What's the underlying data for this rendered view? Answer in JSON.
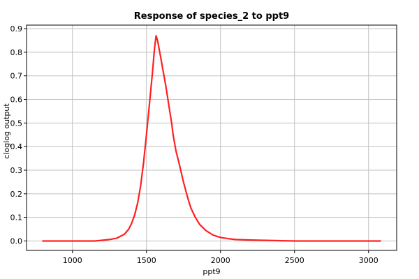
{
  "chart_data": {
    "type": "line",
    "title": "Response of species_2 to ppt9",
    "xlabel": "ppt9",
    "ylabel": "cloglog output",
    "xlim": [
      690,
      3190
    ],
    "ylim": [
      -0.04,
      0.915
    ],
    "xticks": [
      1000,
      1500,
      2000,
      2500,
      3000
    ],
    "yticks": [
      0.0,
      0.1,
      0.2,
      0.3,
      0.4,
      0.5,
      0.6,
      0.7,
      0.8,
      0.9
    ],
    "ytick_labels": [
      "0.0",
      "0.1",
      "0.2",
      "0.3",
      "0.4",
      "0.5",
      "0.6",
      "0.7",
      "0.8",
      "0.9"
    ],
    "grid": true,
    "legend": "none",
    "series": [
      {
        "color": "#ff2020",
        "x": [
          800,
          1000,
          1150,
          1200,
          1250,
          1300,
          1350,
          1380,
          1400,
          1420,
          1440,
          1460,
          1480,
          1500,
          1520,
          1540,
          1555,
          1565,
          1575,
          1590,
          1610,
          1630,
          1650,
          1670,
          1680,
          1700,
          1720,
          1750,
          1780,
          1800,
          1830,
          1860,
          1900,
          1950,
          2000,
          2050,
          2100,
          2200,
          2280,
          2500,
          2800,
          3080
        ],
        "y": [
          0.0,
          0.0,
          0.0,
          0.003,
          0.006,
          0.012,
          0.028,
          0.05,
          0.075,
          0.11,
          0.16,
          0.23,
          0.33,
          0.45,
          0.58,
          0.71,
          0.82,
          0.87,
          0.85,
          0.8,
          0.73,
          0.66,
          0.58,
          0.5,
          0.45,
          0.38,
          0.33,
          0.25,
          0.18,
          0.14,
          0.1,
          0.07,
          0.045,
          0.025,
          0.015,
          0.01,
          0.006,
          0.004,
          0.003,
          0.0,
          0.0,
          0.0
        ]
      }
    ]
  }
}
